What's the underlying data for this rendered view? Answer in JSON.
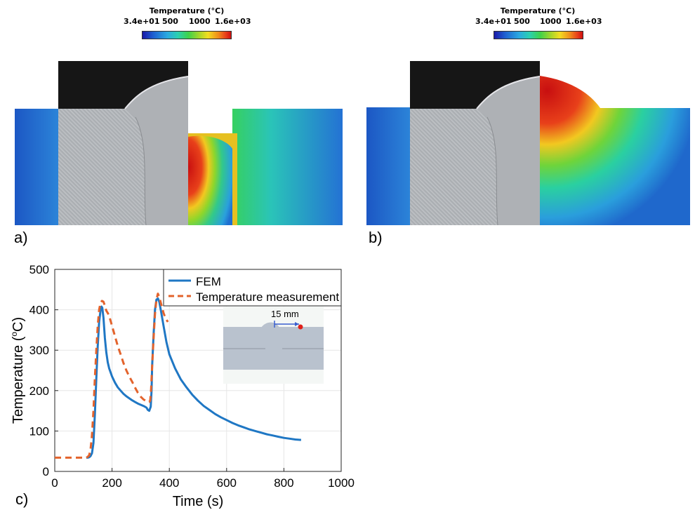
{
  "colorbar_a": {
    "title": "Temperature (°C)",
    "ticks": [
      "3.4e+01",
      "500",
      "1000",
      "1.6e+03"
    ]
  },
  "colorbar_b": {
    "title": "Temperature (°C)",
    "ticks": [
      "3.4e+01",
      "500",
      "1000",
      "1.6e+03"
    ]
  },
  "panel_labels": {
    "a": "a)",
    "b": "b)",
    "c": "c)"
  },
  "chart_data": {
    "type": "line",
    "xlabel": "Time (s)",
    "ylabel_main": "Temperature (",
    "ylabel_sup": "o",
    "ylabel_end": "C)",
    "xlim": [
      0,
      1000
    ],
    "ylim": [
      0,
      500
    ],
    "xticks": [
      0,
      200,
      400,
      600,
      800,
      1000
    ],
    "yticks": [
      0,
      100,
      200,
      300,
      400,
      500
    ],
    "grid": true,
    "legend_position": "top-right",
    "series": [
      {
        "name": "FEM",
        "color": "#1f77c4",
        "style": "solid",
        "x": [
          110,
          115,
          120,
          125,
          130,
          135,
          140,
          145,
          150,
          155,
          160,
          163,
          166,
          170,
          175,
          180,
          185,
          190,
          200,
          210,
          220,
          230,
          240,
          250,
          260,
          270,
          280,
          290,
          300,
          310,
          320,
          325,
          330,
          335,
          338,
          340,
          345,
          350,
          355,
          360,
          365,
          370,
          380,
          390,
          400,
          420,
          440,
          460,
          480,
          500,
          520,
          540,
          560,
          580,
          600,
          620,
          640,
          660,
          680,
          700,
          720,
          740,
          760,
          780,
          800,
          820,
          840,
          860
        ],
        "y": [
          34,
          34,
          35,
          38,
          45,
          70,
          140,
          230,
          310,
          370,
          400,
          408,
          405,
          380,
          330,
          295,
          270,
          255,
          235,
          220,
          208,
          200,
          192,
          186,
          181,
          176,
          172,
          168,
          165,
          162,
          158,
          152,
          150,
          160,
          200,
          260,
          340,
          400,
          425,
          428,
          420,
          400,
          360,
          320,
          290,
          255,
          228,
          208,
          190,
          175,
          162,
          152,
          142,
          134,
          127,
          120,
          114,
          109,
          104,
          100,
          96,
          92,
          89,
          86,
          83,
          81,
          79,
          78
        ]
      },
      {
        "name": "Temperature measurement",
        "color": "#e3632c",
        "style": "dashed",
        "x": [
          0,
          20,
          40,
          60,
          80,
          100,
          110,
          115,
          120,
          125,
          130,
          135,
          140,
          145,
          150,
          155,
          160,
          165,
          170,
          175,
          180,
          185,
          190,
          200,
          210,
          220,
          230,
          240,
          250,
          260,
          270,
          280,
          290,
          300,
          310,
          320,
          330,
          333,
          336,
          340,
          345,
          350,
          355,
          360,
          365,
          370,
          375,
          380,
          385,
          390,
          395
        ],
        "y": [
          34,
          34,
          34,
          34,
          34,
          34,
          34,
          36,
          40,
          55,
          90,
          150,
          230,
          300,
          360,
          400,
          418,
          422,
          420,
          410,
          398,
          392,
          385,
          360,
          335,
          310,
          290,
          268,
          250,
          235,
          222,
          208,
          195,
          185,
          178,
          174,
          172,
          175,
          200,
          260,
          330,
          390,
          425,
          440,
          432,
          418,
          405,
          392,
          382,
          375,
          370
        ]
      }
    ]
  },
  "inset": {
    "label": "15 mm"
  }
}
